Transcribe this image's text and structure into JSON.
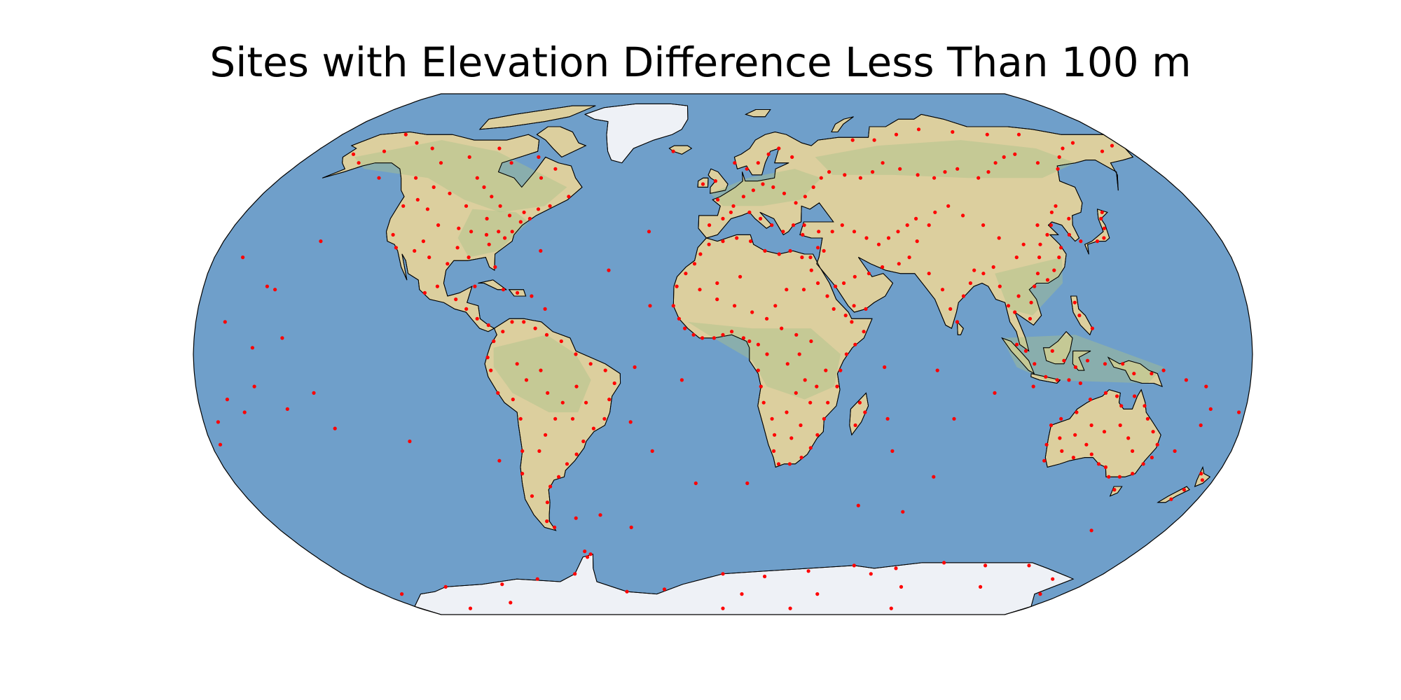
{
  "title": "Sites with Elevation Difference Less Than 100 m",
  "colors": {
    "ocean": "#6f9fca",
    "land": "#dccf9e",
    "land_green": "#a9c08a",
    "ice": "#eef1f6",
    "border": "#000000",
    "site": "#ff0000"
  },
  "map_data": {
    "projection": "robinson",
    "marker": "dot",
    "sites": [
      [
        -100,
        55
      ],
      [
        -95,
        52
      ],
      [
        -90,
        49
      ],
      [
        -85,
        46
      ],
      [
        -80,
        43
      ],
      [
        -75,
        41
      ],
      [
        -88,
        42
      ],
      [
        -97,
        39
      ],
      [
        -105,
        40
      ],
      [
        -112,
        45
      ],
      [
        -118,
        48
      ],
      [
        -122,
        46
      ],
      [
        -120,
        37
      ],
      [
        -117,
        33
      ],
      [
        -110,
        32
      ],
      [
        -104,
        30
      ],
      [
        -97,
        28
      ],
      [
        -90,
        30
      ],
      [
        -84,
        34
      ],
      [
        -80,
        27
      ],
      [
        -77,
        38
      ],
      [
        -72,
        42
      ],
      [
        -70,
        45
      ],
      [
        -66,
        46
      ],
      [
        -60,
        49
      ],
      [
        -74,
        55
      ],
      [
        -70,
        58
      ],
      [
        -80,
        62
      ],
      [
        -90,
        60
      ],
      [
        -100,
        65
      ],
      [
        -110,
        62
      ],
      [
        -120,
        60
      ],
      [
        -130,
        65
      ],
      [
        -140,
        67
      ],
      [
        -150,
        64
      ],
      [
        -155,
        60
      ],
      [
        -162,
        63
      ],
      [
        -150,
        70
      ],
      [
        -125,
        55
      ],
      [
        -115,
        52
      ],
      [
        -107,
        50
      ],
      [
        -98,
        46
      ],
      [
        -92,
        38
      ],
      [
        -86,
        37
      ],
      [
        -82,
        38
      ],
      [
        -79,
        36
      ],
      [
        -75,
        44
      ],
      [
        -108,
        35
      ],
      [
        -95,
        33
      ],
      [
        -103,
        19
      ],
      [
        -99,
        21
      ],
      [
        -92,
        17
      ],
      [
        -88,
        14
      ],
      [
        -84,
        11
      ],
      [
        -80,
        9
      ],
      [
        -86,
        21
      ],
      [
        -76,
        20
      ],
      [
        -71,
        19
      ],
      [
        -66,
        18
      ],
      [
        -61,
        14
      ],
      [
        -155,
        20
      ],
      [
        -158,
        21
      ],
      [
        -78,
        4
      ],
      [
        -75,
        7
      ],
      [
        -72,
        10
      ],
      [
        -68,
        10
      ],
      [
        -64,
        8
      ],
      [
        -60,
        6
      ],
      [
        -55,
        4
      ],
      [
        -50,
        0
      ],
      [
        -45,
        -3
      ],
      [
        -40,
        -5
      ],
      [
        -37,
        -9
      ],
      [
        -39,
        -14
      ],
      [
        -41,
        -20
      ],
      [
        -45,
        -23
      ],
      [
        -49,
        -27
      ],
      [
        -52,
        -31
      ],
      [
        -56,
        -34
      ],
      [
        -60,
        -38
      ],
      [
        -64,
        -41
      ],
      [
        -67,
        -46
      ],
      [
        -70,
        -52
      ],
      [
        -68,
        -54
      ],
      [
        -72,
        -44
      ],
      [
        -73,
        -37
      ],
      [
        -71,
        -30
      ],
      [
        -70,
        -20
      ],
      [
        -72,
        -14
      ],
      [
        -77,
        -12
      ],
      [
        -79,
        -5
      ],
      [
        -80,
        -1
      ],
      [
        -60,
        -12
      ],
      [
        -55,
        -15
      ],
      [
        -50,
        -10
      ],
      [
        -47,
        -15
      ],
      [
        -52,
        -20
      ],
      [
        -58,
        -20
      ],
      [
        -62,
        -25
      ],
      [
        -65,
        -30
      ],
      [
        -62,
        -5
      ],
      [
        -67,
        -8
      ],
      [
        -70,
        -3
      ],
      [
        -58,
        -51
      ],
      [
        -60,
        -62
      ],
      [
        -5,
        40
      ],
      [
        0,
        42
      ],
      [
        4,
        46
      ],
      [
        8,
        49
      ],
      [
        12,
        51
      ],
      [
        16,
        53
      ],
      [
        20,
        52
      ],
      [
        24,
        50
      ],
      [
        28,
        47
      ],
      [
        32,
        49
      ],
      [
        36,
        52
      ],
      [
        40,
        55
      ],
      [
        44,
        57
      ],
      [
        50,
        56
      ],
      [
        56,
        55
      ],
      [
        62,
        57
      ],
      [
        68,
        60
      ],
      [
        74,
        58
      ],
      [
        80,
        56
      ],
      [
        86,
        55
      ],
      [
        92,
        57
      ],
      [
        98,
        58
      ],
      [
        104,
        55
      ],
      [
        110,
        57
      ],
      [
        116,
        60
      ],
      [
        122,
        62
      ],
      [
        128,
        63
      ],
      [
        134,
        60
      ],
      [
        140,
        58
      ],
      [
        146,
        62
      ],
      [
        152,
        65
      ],
      [
        160,
        67
      ],
      [
        168,
        64
      ],
      [
        176,
        66
      ],
      [
        60,
        68
      ],
      [
        70,
        68
      ],
      [
        82,
        70
      ],
      [
        95,
        72
      ],
      [
        110,
        71
      ],
      [
        125,
        70
      ],
      [
        140,
        70
      ],
      [
        30,
        62
      ],
      [
        25,
        65
      ],
      [
        20,
        63
      ],
      [
        15,
        60
      ],
      [
        10,
        58
      ],
      [
        5,
        60
      ],
      [
        -3,
        54
      ],
      [
        -8,
        53
      ],
      [
        -22,
        64
      ],
      [
        -2,
        48
      ],
      [
        3,
        44
      ],
      [
        10,
        44
      ],
      [
        14,
        42
      ],
      [
        18,
        40
      ],
      [
        22,
        38
      ],
      [
        26,
        40
      ],
      [
        30,
        40
      ],
      [
        35,
        38
      ],
      [
        40,
        38
      ],
      [
        44,
        40
      ],
      [
        48,
        38
      ],
      [
        52,
        36
      ],
      [
        56,
        34
      ],
      [
        60,
        36
      ],
      [
        64,
        38
      ],
      [
        68,
        40
      ],
      [
        72,
        42
      ],
      [
        76,
        40
      ],
      [
        70,
        35
      ],
      [
        66,
        30
      ],
      [
        62,
        28
      ],
      [
        56,
        27
      ],
      [
        51,
        25
      ],
      [
        46,
        24
      ],
      [
        42,
        22
      ],
      [
        45,
        15
      ],
      [
        49,
        14
      ],
      [
        39,
        21
      ],
      [
        36,
        32
      ],
      [
        31,
        30
      ],
      [
        29,
        37
      ],
      [
        34,
        33
      ],
      [
        72,
        25
      ],
      [
        76,
        20
      ],
      [
        78,
        14
      ],
      [
        80,
        10
      ],
      [
        83,
        18
      ],
      [
        86,
        22
      ],
      [
        88,
        26
      ],
      [
        91,
        25
      ],
      [
        95,
        27
      ],
      [
        96,
        21
      ],
      [
        98,
        15
      ],
      [
        100,
        13
      ],
      [
        102,
        18
      ],
      [
        105,
        11
      ],
      [
        106,
        16
      ],
      [
        108,
        21
      ],
      [
        110,
        25
      ],
      [
        113,
        23
      ],
      [
        116,
        26
      ],
      [
        119,
        30
      ],
      [
        121,
        33
      ],
      [
        118,
        37
      ],
      [
        114,
        34
      ],
      [
        112,
        30
      ],
      [
        108,
        34
      ],
      [
        104,
        30
      ],
      [
        100,
        36
      ],
      [
        96,
        40
      ],
      [
        90,
        43
      ],
      [
        86,
        46
      ],
      [
        80,
        44
      ],
      [
        116,
        40
      ],
      [
        121,
        40
      ],
      [
        124,
        44
      ],
      [
        127,
        46
      ],
      [
        129,
        42
      ],
      [
        126,
        37
      ],
      [
        129,
        35
      ],
      [
        135,
        35
      ],
      [
        138,
        36
      ],
      [
        140,
        39
      ],
      [
        141,
        42
      ],
      [
        143,
        44
      ],
      [
        100,
        3
      ],
      [
        103,
        1
      ],
      [
        106,
        -3
      ],
      [
        110,
        -7
      ],
      [
        114,
        -8
      ],
      [
        118,
        -8
      ],
      [
        122,
        -9
      ],
      [
        112,
        1
      ],
      [
        116,
        -2
      ],
      [
        120,
        -4
      ],
      [
        124,
        -2
      ],
      [
        126,
        8
      ],
      [
        122,
        12
      ],
      [
        121,
        16
      ],
      [
        130,
        -3
      ],
      [
        136,
        -3
      ],
      [
        140,
        -6
      ],
      [
        146,
        -6
      ],
      [
        150,
        -5
      ],
      [
        158,
        -8
      ],
      [
        165,
        -10
      ],
      [
        -17,
        15
      ],
      [
        -15,
        11
      ],
      [
        -13,
        8
      ],
      [
        -10,
        6
      ],
      [
        -7,
        5
      ],
      [
        -3,
        5
      ],
      [
        0,
        6
      ],
      [
        3,
        7
      ],
      [
        7,
        5
      ],
      [
        9,
        4
      ],
      [
        12,
        3
      ],
      [
        15,
        0
      ],
      [
        12,
        -5
      ],
      [
        13,
        -10
      ],
      [
        14,
        -15
      ],
      [
        17,
        -20
      ],
      [
        18,
        -25
      ],
      [
        18,
        -30
      ],
      [
        20,
        -34
      ],
      [
        24,
        -34
      ],
      [
        28,
        -32
      ],
      [
        31,
        -29
      ],
      [
        33,
        -25
      ],
      [
        35,
        -20
      ],
      [
        36,
        -15
      ],
      [
        39,
        -10
      ],
      [
        40,
        -5
      ],
      [
        42,
        0
      ],
      [
        45,
        3
      ],
      [
        48,
        7
      ],
      [
        44,
        10
      ],
      [
        42,
        12
      ],
      [
        38,
        14
      ],
      [
        36,
        18
      ],
      [
        33,
        22
      ],
      [
        31,
        26
      ],
      [
        28,
        30
      ],
      [
        24,
        32
      ],
      [
        20,
        31
      ],
      [
        15,
        32
      ],
      [
        10,
        35
      ],
      [
        5,
        36
      ],
      [
        0,
        35
      ],
      [
        -5,
        34
      ],
      [
        -8,
        31
      ],
      [
        -10,
        28
      ],
      [
        -13,
        25
      ],
      [
        -16,
        21
      ],
      [
        -8,
        20
      ],
      [
        -2,
        17
      ],
      [
        4,
        15
      ],
      [
        10,
        13
      ],
      [
        15,
        11
      ],
      [
        20,
        8
      ],
      [
        25,
        6
      ],
      [
        30,
        4
      ],
      [
        26,
        0
      ],
      [
        22,
        -3
      ],
      [
        28,
        -8
      ],
      [
        25,
        -12
      ],
      [
        30,
        -15
      ],
      [
        22,
        -18
      ],
      [
        27,
        -22
      ],
      [
        24,
        -26
      ],
      [
        32,
        -10
      ],
      [
        35,
        -5
      ],
      [
        18,
        15
      ],
      [
        22,
        20
      ],
      [
        28,
        20
      ],
      [
        6,
        24
      ],
      [
        -2,
        22
      ],
      [
        47,
        -15
      ],
      [
        49,
        -18
      ],
      [
        46,
        -22
      ],
      [
        57,
        -20
      ],
      [
        55,
        -4
      ],
      [
        73,
        -5
      ],
      [
        60,
        -30
      ],
      [
        115,
        -33
      ],
      [
        114,
        -28
      ],
      [
        114,
        -22
      ],
      [
        117,
        -20
      ],
      [
        122,
        -18
      ],
      [
        126,
        -14
      ],
      [
        131,
        -12
      ],
      [
        135,
        -13
      ],
      [
        137,
        -16
      ],
      [
        141,
        -13
      ],
      [
        145,
        -16
      ],
      [
        147,
        -20
      ],
      [
        150,
        -24
      ],
      [
        153,
        -28
      ],
      [
        153,
        -32
      ],
      [
        151,
        -34
      ],
      [
        149,
        -37
      ],
      [
        145,
        -38
      ],
      [
        141,
        -38
      ],
      [
        138,
        -35
      ],
      [
        135,
        -34
      ],
      [
        131,
        -31
      ],
      [
        125,
        -32
      ],
      [
        120,
        -30
      ],
      [
        123,
        -25
      ],
      [
        128,
        -22
      ],
      [
        133,
        -24
      ],
      [
        138,
        -22
      ],
      [
        142,
        -26
      ],
      [
        145,
        -30
      ],
      [
        128,
        -28
      ],
      [
        118,
        -26
      ],
      [
        146,
        -42
      ],
      [
        174,
        -37
      ],
      [
        176,
        -39
      ],
      [
        172,
        -42
      ],
      [
        170,
        -45
      ],
      [
        166,
        -22
      ],
      [
        168,
        -17
      ],
      [
        178,
        -18
      ],
      [
        -170,
        -14
      ],
      [
        -160,
        -10
      ],
      [
        -150,
        -17
      ],
      [
        -140,
        -12
      ],
      [
        -135,
        -23
      ],
      [
        -175,
        -21
      ],
      [
        -150,
        5
      ],
      [
        -160,
        2
      ],
      [
        -170,
        10
      ],
      [
        -165,
        -18
      ],
      [
        -110,
        -27
      ],
      [
        -80,
        -33
      ],
      [
        -30,
        -4
      ],
      [
        -32,
        -21
      ],
      [
        -14,
        -8
      ],
      [
        -25,
        15
      ],
      [
        -27,
        38
      ],
      [
        -40,
        26
      ],
      [
        -65,
        32
      ],
      [
        -48,
        -50
      ],
      [
        -37,
        -54
      ],
      [
        -25,
        -30
      ],
      [
        -10,
        -40
      ],
      [
        9,
        -40
      ],
      [
        52,
        -47
      ],
      [
        70,
        -49
      ],
      [
        77,
        -38
      ],
      [
        80,
        -20
      ],
      [
        93,
        -12
      ],
      [
        106,
        -10
      ],
      [
        160,
        -30
      ],
      [
        150,
        -55
      ],
      [
        -140,
        55
      ],
      [
        -170,
        30
      ],
      [
        -145,
        35
      ],
      [
        -177,
        -28
      ],
      [
        0,
        -70
      ],
      [
        20,
        -71
      ],
      [
        40,
        -69
      ],
      [
        60,
        -67
      ],
      [
        80,
        -68
      ],
      [
        100,
        -66
      ],
      [
        120,
        -67
      ],
      [
        140,
        -67
      ],
      [
        160,
        -72
      ],
      [
        -170,
        -78
      ],
      [
        -140,
        -75
      ],
      [
        -110,
        -74
      ],
      [
        -90,
        -72
      ],
      [
        -70,
        -70
      ],
      [
        -50,
        -77
      ],
      [
        -30,
        -76
      ],
      [
        10,
        -78
      ],
      [
        50,
        -78
      ],
      [
        90,
        -75
      ],
      [
        130,
        -75
      ],
      [
        -150,
        -85
      ],
      [
        0,
        -85
      ],
      [
        100,
        -85
      ],
      [
        -60,
        -64
      ],
      [
        -58,
        -63
      ],
      [
        70,
        -70
      ],
      [
        168,
        -78
      ],
      [
        -120,
        -82
      ],
      [
        40,
        -85
      ]
    ]
  }
}
